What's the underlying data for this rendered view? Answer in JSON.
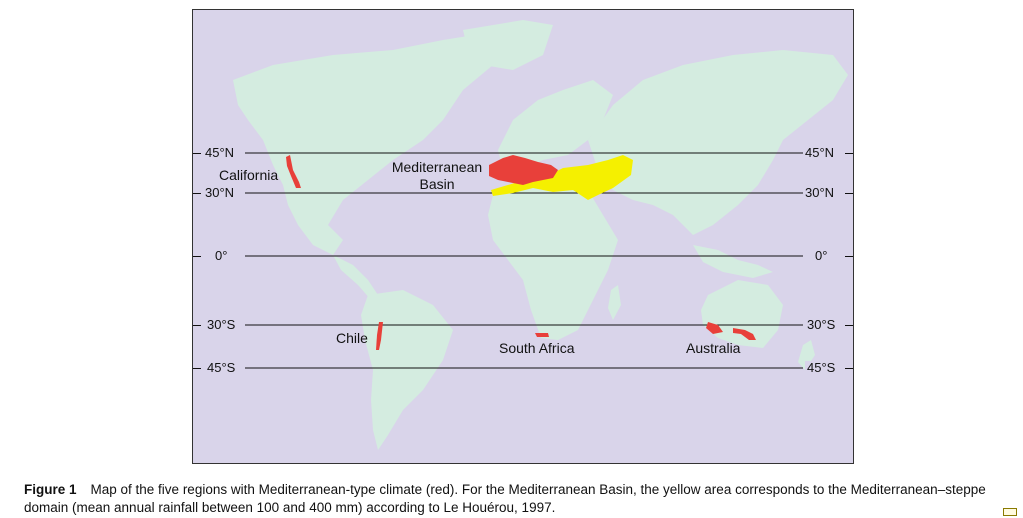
{
  "map": {
    "latitude_lines": [
      {
        "label_left": "45°N",
        "label_right": "45°N"
      },
      {
        "label_left": "30°N",
        "label_right": "30°N"
      },
      {
        "label_left": "0°",
        "label_right": "0°"
      },
      {
        "label_left": "30°S",
        "label_right": "30°S"
      },
      {
        "label_left": "45°S",
        "label_right": "45°S"
      }
    ],
    "regions": {
      "california": "California",
      "mediterranean_line1": "Mediterranean",
      "mediterranean_line2": "Basin",
      "chile": "Chile",
      "south_africa": "South Africa",
      "australia": "Australia"
    },
    "colors": {
      "ocean": "#d9d4ea",
      "land": "#d4ece0",
      "mediterranean_climate": "#e8403a",
      "steppe": "#f5f000"
    }
  },
  "caption": {
    "label": "Figure 1",
    "text": "Map of the five regions with Mediterranean-type climate (red). For the Mediterranean Basin, the yellow area corresponds to the Mediterranean–steppe domain (mean annual rainfall between 100 and 400 mm) according to Le Houérou, 1997."
  }
}
